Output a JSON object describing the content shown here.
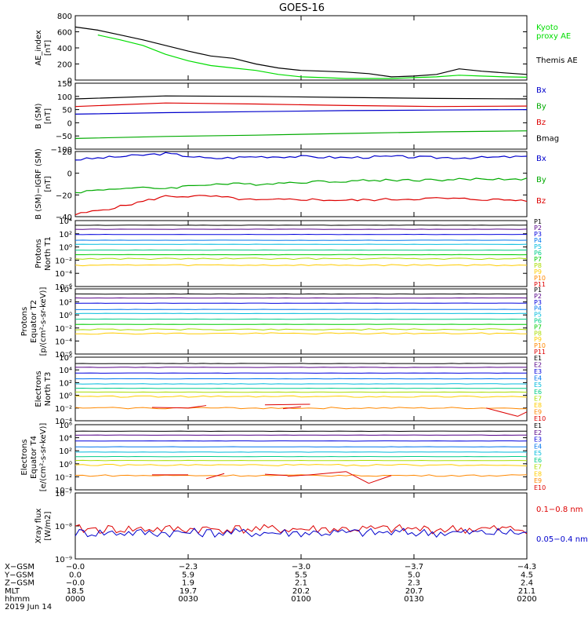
{
  "title": "GOES-16",
  "panels": [
    {
      "id": "ae",
      "ylabel": [
        "AE_index",
        "[nT]"
      ],
      "yticks": [
        "800",
        "600",
        "400",
        "200",
        "0"
      ],
      "legend": [
        {
          "text": "Kyoto",
          "color": "#00dd00"
        },
        {
          "text": "proxy AE",
          "color": "#00dd00"
        },
        {
          "text": "Themis AE",
          "color": "#000000"
        }
      ]
    },
    {
      "id": "bsm",
      "ylabel": [
        "B (SM)",
        "[nT]"
      ],
      "yticks": [
        "150",
        "100",
        "50",
        "0",
        "−50",
        "−100"
      ],
      "legend": [
        {
          "text": "Bx",
          "color": "#0000cc"
        },
        {
          "text": "By",
          "color": "#00aa00"
        },
        {
          "text": "Bz",
          "color": "#dd0000"
        },
        {
          "text": "Bmag",
          "color": "#000000"
        }
      ]
    },
    {
      "id": "bigrf",
      "ylabel": [
        "B (SM)−IGRF (SM)",
        "[nT]"
      ],
      "yticks": [
        "20",
        "0",
        "−20",
        "−40"
      ],
      "legend": [
        {
          "text": "Bx",
          "color": "#0000cc"
        },
        {
          "text": "By",
          "color": "#00aa00"
        },
        {
          "text": "Bz",
          "color": "#dd0000"
        }
      ]
    },
    {
      "id": "pt1",
      "ylabel": [
        "Protons",
        "North T1"
      ],
      "yticks": [
        "10⁴",
        "10²",
        "10⁰",
        "10⁻²",
        "10⁻⁴",
        "10⁻⁶"
      ],
      "legend": [
        {
          "text": "P1"
        },
        {
          "text": "P2"
        },
        {
          "text": "P3"
        },
        {
          "text": "P4"
        },
        {
          "text": "P5"
        },
        {
          "text": "P6"
        },
        {
          "text": "P7"
        },
        {
          "text": "P8"
        },
        {
          "text": "P9"
        },
        {
          "text": "P10"
        },
        {
          "text": "P11"
        }
      ]
    },
    {
      "id": "pt2",
      "ylabel": [
        "Protons",
        "Equator T2",
        "[p/(cm²-s-sr-keV)]"
      ],
      "yticks": [
        "10⁴",
        "10²",
        "10⁰",
        "10⁻²",
        "10⁻⁴",
        "10⁻⁶"
      ],
      "legend": [
        {
          "text": "P1"
        },
        {
          "text": "P2"
        },
        {
          "text": "P3"
        },
        {
          "text": "P4"
        },
        {
          "text": "P5"
        },
        {
          "text": "P6"
        },
        {
          "text": "P7"
        },
        {
          "text": "P8"
        },
        {
          "text": "P9"
        },
        {
          "text": "P10"
        },
        {
          "text": "P11"
        }
      ]
    },
    {
      "id": "et3",
      "ylabel": [
        "Electrons",
        "North T3"
      ],
      "yticks": [
        "10⁶",
        "10⁴",
        "10²",
        "10⁰",
        "10⁻²",
        "10⁻⁴"
      ],
      "legend": [
        {
          "text": "E1"
        },
        {
          "text": "E2"
        },
        {
          "text": "E3"
        },
        {
          "text": "E4"
        },
        {
          "text": "E5"
        },
        {
          "text": "E6"
        },
        {
          "text": "E7"
        },
        {
          "text": "E8"
        },
        {
          "text": "E9"
        },
        {
          "text": "E10"
        }
      ]
    },
    {
      "id": "et4",
      "ylabel": [
        "Electrons",
        "Equator T4",
        "[e/(cm²-s-sr-keV)]"
      ],
      "yticks": [
        "10⁶",
        "10⁴",
        "10²",
        "10⁰",
        "10⁻²",
        "10⁻⁴"
      ],
      "legend": [
        {
          "text": "E1"
        },
        {
          "text": "E2"
        },
        {
          "text": "E3"
        },
        {
          "text": "E4"
        },
        {
          "text": "E5"
        },
        {
          "text": "E6"
        },
        {
          "text": "E7"
        },
        {
          "text": "E8"
        },
        {
          "text": "E9"
        },
        {
          "text": "E10"
        }
      ]
    },
    {
      "id": "xray",
      "ylabel": [
        "Xray flux",
        "[W/m2]"
      ],
      "yticks": [
        "10⁻⁷",
        "10⁻⁸",
        "10⁻⁹"
      ],
      "legend": [
        {
          "text": "0.1−0.8 nm",
          "color": "#dd0000"
        },
        {
          "text": "0.05−0.4 nm",
          "color": "#0000cc"
        }
      ]
    }
  ],
  "p_colors": [
    "#000000",
    "#550088",
    "#0000dd",
    "#0077ee",
    "#00bbdd",
    "#00cc88",
    "#00cc00",
    "#aadd00",
    "#ffcc00",
    "#ff8800",
    "#dd0000"
  ],
  "e_colors": [
    "#000000",
    "#550088",
    "#0000dd",
    "#0077ee",
    "#00bbdd",
    "#00cc88",
    "#aadd00",
    "#ffcc00",
    "#ff8800",
    "#dd0000"
  ],
  "footer": {
    "rows": [
      {
        "label": "X−GSM",
        "values": [
          "−0.0",
          "−2.3",
          "−3.0",
          "−3.7",
          "−4.3"
        ]
      },
      {
        "label": "Y−GSM",
        "values": [
          "0.0",
          "5.9",
          "5.5",
          "5.0",
          "4.5"
        ]
      },
      {
        "label": "Z−GSM",
        "values": [
          "−0.0",
          "1.9",
          "2.1",
          "2.3",
          "2.4"
        ]
      },
      {
        "label": "MLT",
        "values": [
          "18.5",
          "19.7",
          "20.2",
          "20.7",
          "21.1"
        ]
      },
      {
        "label": "hhmm",
        "values": [
          "0000",
          "0030",
          "0100",
          "0130",
          "0200"
        ]
      }
    ],
    "date": "2019 Jun 14"
  },
  "chart_data": [
    {
      "type": "line",
      "title": "GOES-16",
      "ylabel": "AE_index [nT]",
      "ylim": [
        0,
        800
      ],
      "x_ticks": [
        "0000",
        "0030",
        "0100",
        "0130",
        "0200"
      ],
      "series": [
        {
          "name": "Themis AE",
          "x": [
            0,
            0.05,
            0.1,
            0.15,
            0.2,
            0.25,
            0.3,
            0.35,
            0.4,
            0.45,
            0.5,
            0.55,
            0.6,
            0.65,
            0.7,
            0.75,
            0.8,
            0.85,
            0.9,
            0.95,
            1.0
          ],
          "values": [
            660,
            620,
            560,
            500,
            430,
            360,
            300,
            270,
            200,
            150,
            120,
            110,
            100,
            80,
            40,
            50,
            70,
            140,
            110,
            90,
            70
          ]
        },
        {
          "name": "Kyoto proxy AE",
          "x": [
            0.05,
            0.1,
            0.15,
            0.2,
            0.25,
            0.3,
            0.35,
            0.4,
            0.45,
            0.5,
            0.55,
            0.6,
            0.65,
            0.7,
            0.75,
            0.8,
            0.85,
            0.9,
            0.95,
            1.0
          ],
          "values": [
            560,
            500,
            430,
            320,
            240,
            180,
            150,
            120,
            70,
            40,
            30,
            20,
            20,
            20,
            30,
            40,
            60,
            50,
            40,
            35
          ]
        }
      ]
    },
    {
      "type": "line",
      "ylabel": "B (SM) [nT]",
      "ylim": [
        -110,
        150
      ],
      "series": [
        {
          "name": "Bx",
          "x": [
            0,
            0.2,
            0.4,
            0.6,
            0.8,
            1.0
          ],
          "values": [
            28,
            34,
            38,
            42,
            44,
            46
          ]
        },
        {
          "name": "By",
          "x": [
            0,
            0.2,
            0.4,
            0.6,
            0.8,
            1.0
          ],
          "values": [
            -68,
            -60,
            -55,
            -48,
            -42,
            -38
          ]
        },
        {
          "name": "Bz",
          "x": [
            0,
            0.2,
            0.4,
            0.6,
            0.8,
            1.0
          ],
          "values": [
            58,
            72,
            68,
            62,
            58,
            60
          ]
        },
        {
          "name": "Bmag",
          "x": [
            0,
            0.2,
            0.4,
            0.6,
            0.8,
            1.0
          ],
          "values": [
            88,
            100,
            98,
            94,
            90,
            88
          ]
        }
      ]
    },
    {
      "type": "line",
      "ylabel": "B (SM)−IGRF (SM) [nT]",
      "ylim": [
        -42,
        22
      ],
      "series": [
        {
          "name": "Bx",
          "x": [
            0,
            0.1,
            0.2,
            0.3,
            0.4,
            0.5,
            0.6,
            0.7,
            0.8,
            0.9,
            1.0
          ],
          "values": [
            14,
            17,
            20,
            15,
            17,
            17,
            16,
            17,
            16,
            16,
            17
          ]
        },
        {
          "name": "By",
          "x": [
            0,
            0.1,
            0.2,
            0.3,
            0.4,
            0.5,
            0.6,
            0.7,
            0.8,
            0.9,
            1.0
          ],
          "values": [
            -18,
            -14,
            -14,
            -10,
            -10,
            -8,
            -7,
            -6,
            -6,
            -5,
            -5
          ]
        },
        {
          "name": "Bz",
          "x": [
            0,
            0.1,
            0.2,
            0.3,
            0.4,
            0.5,
            0.6,
            0.7,
            0.8,
            0.9,
            1.0
          ],
          "values": [
            -40,
            -32,
            -22,
            -22,
            -26,
            -25,
            -26,
            -25,
            -24,
            -25,
            -26
          ]
        }
      ]
    },
    {
      "type": "line",
      "ylabel": "Protons North T1",
      "yscale": "log",
      "ylim_exp": [
        -7,
        4
      ],
      "series_log10": [
        {
          "name": "P1",
          "value": 3.6
        },
        {
          "name": "P2",
          "value": 2.9
        },
        {
          "name": "P3",
          "value": 2.0
        },
        {
          "name": "P4",
          "value": 1.0
        },
        {
          "name": "P5",
          "value": 0.3
        },
        {
          "name": "P6",
          "value": -0.7
        },
        {
          "name": "P7",
          "value": -1.5
        },
        {
          "name": "P8",
          "value": -2.2
        },
        {
          "name": "P9",
          "value": -3.3
        }
      ]
    },
    {
      "type": "line",
      "ylabel": "Protons Equator T2 [p/(cm²-s-sr-keV)]",
      "yscale": "log",
      "ylim_exp": [
        -7,
        4
      ],
      "series_log10": [
        {
          "name": "P1",
          "value": 3.5
        },
        {
          "name": "P2",
          "value": 2.8
        },
        {
          "name": "P3",
          "value": 1.9
        },
        {
          "name": "P4",
          "value": 0.8
        },
        {
          "name": "P5",
          "value": 0.1
        },
        {
          "name": "P6",
          "value": -0.9
        },
        {
          "name": "P7",
          "value": -1.8
        },
        {
          "name": "P8",
          "value": -2.7
        },
        {
          "name": "P9",
          "value": -3.4
        }
      ]
    },
    {
      "type": "line",
      "ylabel": "Electrons North T3",
      "yscale": "log",
      "ylim_exp": [
        -4,
        6
      ],
      "series_log10": [
        {
          "name": "E1",
          "value": 5.0
        },
        {
          "name": "E2",
          "value": 4.4
        },
        {
          "name": "E3",
          "value": 3.5
        },
        {
          "name": "E4",
          "value": 2.6
        },
        {
          "name": "E5",
          "value": 1.8
        },
        {
          "name": "E6",
          "value": 1.1
        },
        {
          "name": "E7",
          "value": 0.5
        },
        {
          "name": "E8",
          "value": -0.2
        },
        {
          "name": "E9",
          "value": -2.0
        }
      ]
    },
    {
      "type": "line",
      "ylabel": "Electrons Equator T4 [e/(cm²-s-sr-keV)]",
      "yscale": "log",
      "ylim_exp": [
        -4,
        6
      ],
      "series_log10": [
        {
          "name": "E1",
          "value": 5.0
        },
        {
          "name": "E2",
          "value": 4.4
        },
        {
          "name": "E3",
          "value": 3.5
        },
        {
          "name": "E4",
          "value": 2.6
        },
        {
          "name": "E5",
          "value": 1.8
        },
        {
          "name": "E6",
          "value": 1.1
        },
        {
          "name": "E7",
          "value": 0.5
        },
        {
          "name": "E8",
          "value": -0.2
        },
        {
          "name": "E9",
          "value": -1.8
        }
      ]
    },
    {
      "type": "line",
      "ylabel": "Xray flux [W/m2]",
      "yscale": "log",
      "ylim_exp": [
        -9,
        -7
      ],
      "series_log10": [
        {
          "name": "0.1−0.8 nm",
          "value": -8.1
        },
        {
          "name": "0.05−0.4 nm",
          "value": -8.2
        }
      ]
    }
  ]
}
